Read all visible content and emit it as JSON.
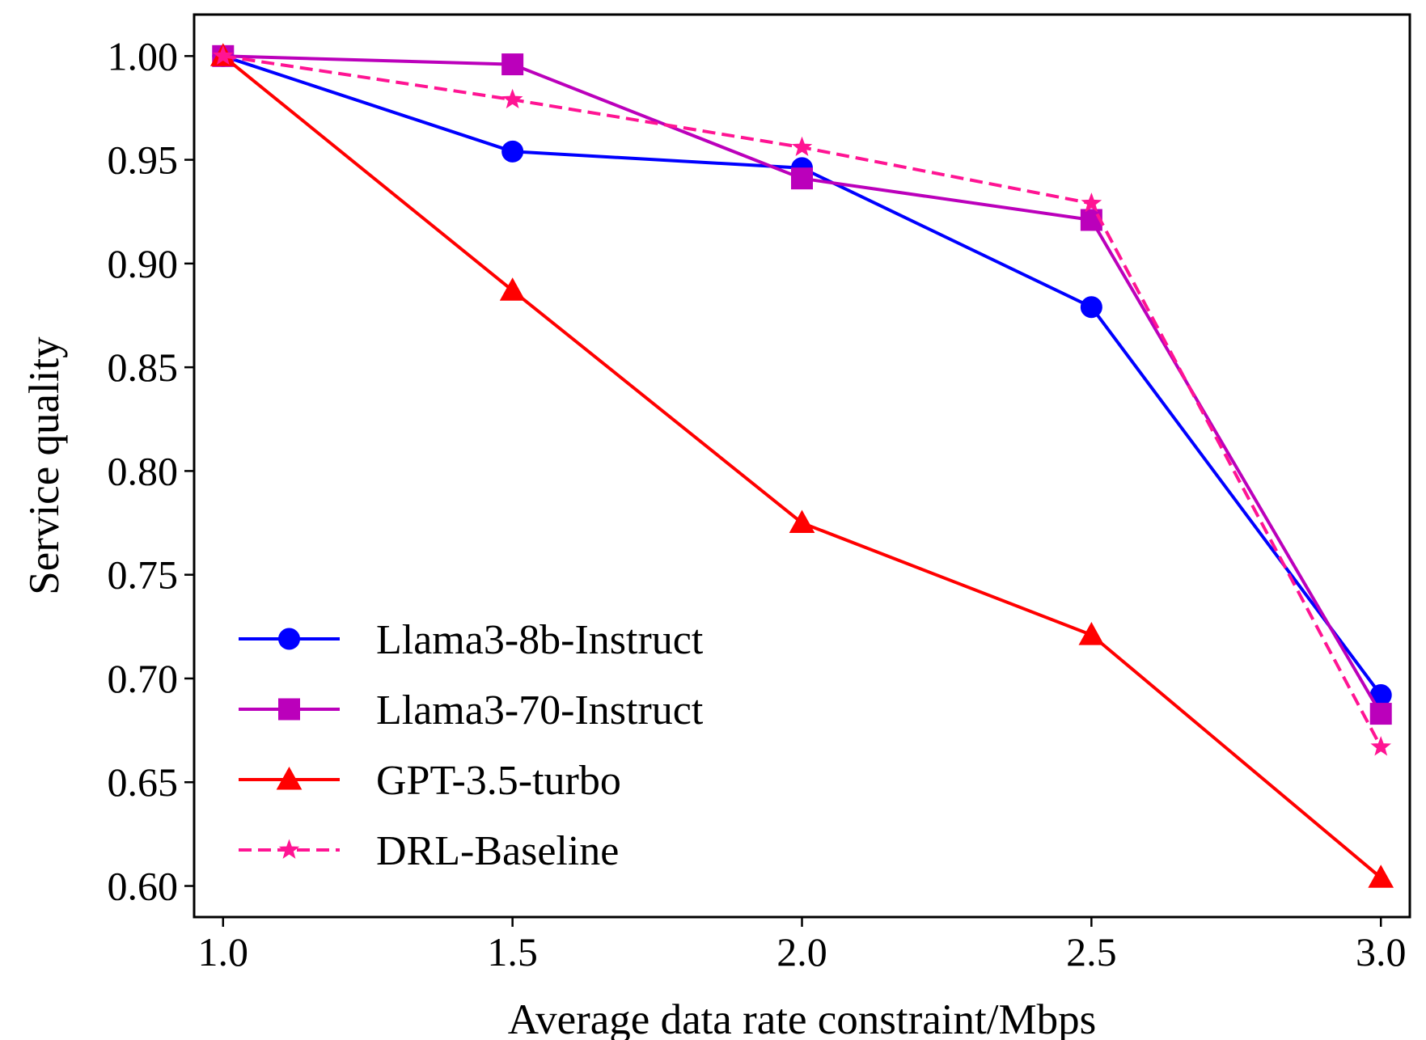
{
  "chart_data": {
    "type": "line",
    "title": "",
    "xlabel": "Average data rate constraint/Mbps",
    "ylabel": "Service quality",
    "x": [
      1.0,
      1.5,
      2.0,
      2.5,
      3.0
    ],
    "xticks": [
      "1.0",
      "1.5",
      "2.0",
      "2.5",
      "3.0"
    ],
    "yticks": [
      "0.60",
      "0.65",
      "0.70",
      "0.75",
      "0.80",
      "0.85",
      "0.90",
      "0.95",
      "1.00"
    ],
    "xlim": [
      0.95,
      3.05
    ],
    "ylim": [
      0.585,
      1.02
    ],
    "grid": false,
    "legend_position": "lower-left",
    "series": [
      {
        "name": "Llama3-8b-Instruct",
        "color": "#0000ff",
        "marker": "circle",
        "linestyle": "solid",
        "values": [
          1.0,
          0.954,
          0.946,
          0.879,
          0.692
        ]
      },
      {
        "name": "Llama3-70-Instruct",
        "color": "#bb00bb",
        "marker": "square",
        "linestyle": "solid",
        "values": [
          1.0,
          0.996,
          0.941,
          0.921,
          0.683
        ]
      },
      {
        "name": "GPT-3.5-turbo",
        "color": "#ff0000",
        "marker": "triangle",
        "linestyle": "solid",
        "values": [
          1.0,
          0.887,
          0.775,
          0.721,
          0.604
        ]
      },
      {
        "name": "DRL-Baseline",
        "color": "#ff1493",
        "marker": "star",
        "linestyle": "dashed",
        "values": [
          1.0,
          0.979,
          0.956,
          0.929,
          0.667
        ]
      }
    ]
  }
}
